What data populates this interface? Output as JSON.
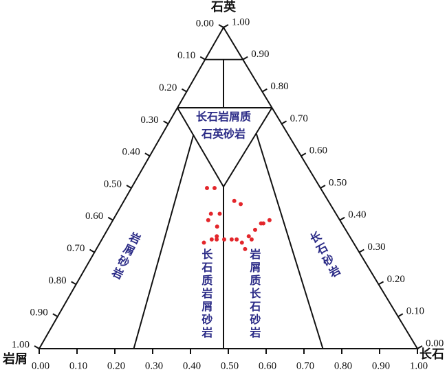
{
  "chart_data": {
    "type": "ternary",
    "apex_labels": {
      "top": "石英",
      "left": "岩屑",
      "right": "长石"
    },
    "regions": {
      "quartzose": [
        "长石岩屑质",
        "石英砂岩"
      ],
      "litharenite": "岩屑砂岩",
      "feldspathic_litharenite": "长石质岩屑砂岩",
      "lithic_arkose": "岩屑质长石砂岩",
      "arkose": "长石砂岩"
    },
    "ticks": [
      {
        "value": 0,
        "label": "0.00"
      },
      {
        "value": 0.1,
        "label": "0.10"
      },
      {
        "value": 0.2,
        "label": "0.20"
      },
      {
        "value": 0.3,
        "label": "0.30"
      },
      {
        "value": 0.4,
        "label": "0.40"
      },
      {
        "value": 0.5,
        "label": "0.50"
      },
      {
        "value": 0.6,
        "label": "0.60"
      },
      {
        "value": 0.7,
        "label": "0.70"
      },
      {
        "value": 0.8,
        "label": "0.80"
      },
      {
        "value": 0.9,
        "label": "0.90"
      },
      {
        "value": 1,
        "label": "1.00"
      }
    ],
    "series": [
      {
        "color": "#e3262b",
        "quartz": [
          0.5,
          0.5,
          0.46,
          0.45,
          0.42,
          0.42,
          0.4,
          0.38,
          0.39,
          0.4,
          0.35,
          0.34,
          0.33,
          0.34,
          0.34,
          0.34,
          0.34,
          0.33,
          0.35,
          0.37,
          0.39,
          0.31,
          0.34
        ],
        "ratio": [
          0.4,
          0.44,
          0.54,
          0.57,
          0.43,
          0.47,
          0.42,
          0.46,
          0.66,
          0.69,
          0.46,
          0.44,
          0.41,
          0.46,
          0.49,
          0.52,
          0.54,
          0.56,
          0.59,
          0.62,
          0.65,
          0.57,
          0.6
        ]
      }
    ]
  }
}
